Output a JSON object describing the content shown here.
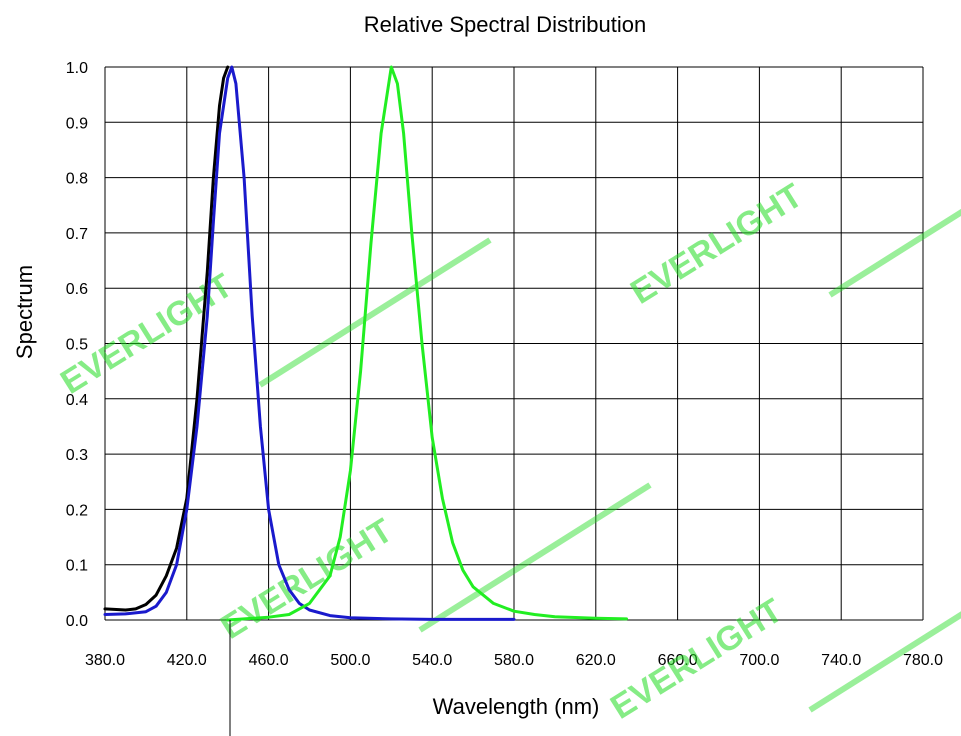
{
  "chart_data": {
    "type": "line",
    "title": "Relative Spectral Distribution",
    "xlabel": "Wavelength (nm)",
    "ylabel": "Spectrum",
    "xlim": [
      380,
      780
    ],
    "ylim": [
      0,
      1.0
    ],
    "x_ticks": [
      "380.0",
      "420.0",
      "460.0",
      "500.0",
      "540.0",
      "580.0",
      "620.0",
      "660.0",
      "700.0",
      "740.0",
      "780.0"
    ],
    "y_ticks": [
      "0.0",
      "0.1",
      "0.2",
      "0.3",
      "0.4",
      "0.5",
      "0.6",
      "0.7",
      "0.8",
      "0.9",
      "1.0"
    ],
    "grid": true,
    "series": [
      {
        "color": "#000000",
        "points": [
          [
            380,
            0.02
          ],
          [
            390,
            0.018
          ],
          [
            395,
            0.02
          ],
          [
            400,
            0.028
          ],
          [
            405,
            0.045
          ],
          [
            410,
            0.08
          ],
          [
            415,
            0.13
          ],
          [
            420,
            0.22
          ],
          [
            425,
            0.4
          ],
          [
            430,
            0.63
          ],
          [
            433,
            0.8
          ],
          [
            436,
            0.93
          ],
          [
            438,
            0.98
          ],
          [
            440,
            1.0
          ]
        ]
      },
      {
        "color": "#1a1acc",
        "points": [
          [
            380,
            0.01
          ],
          [
            390,
            0.011
          ],
          [
            400,
            0.015
          ],
          [
            405,
            0.025
          ],
          [
            410,
            0.05
          ],
          [
            415,
            0.1
          ],
          [
            420,
            0.2
          ],
          [
            425,
            0.35
          ],
          [
            430,
            0.55
          ],
          [
            433,
            0.72
          ],
          [
            436,
            0.88
          ],
          [
            440,
            0.98
          ],
          [
            442,
            1.0
          ],
          [
            444,
            0.97
          ],
          [
            448,
            0.8
          ],
          [
            452,
            0.55
          ],
          [
            456,
            0.35
          ],
          [
            460,
            0.2
          ],
          [
            465,
            0.1
          ],
          [
            470,
            0.055
          ],
          [
            475,
            0.03
          ],
          [
            480,
            0.018
          ],
          [
            490,
            0.008
          ],
          [
            500,
            0.004
          ],
          [
            520,
            0.002
          ],
          [
            540,
            0.001
          ],
          [
            580,
            0.001
          ]
        ]
      },
      {
        "color": "#22ee22",
        "points": [
          [
            440,
            0.0
          ],
          [
            460,
            0.005
          ],
          [
            470,
            0.01
          ],
          [
            480,
            0.03
          ],
          [
            490,
            0.08
          ],
          [
            495,
            0.15
          ],
          [
            500,
            0.27
          ],
          [
            505,
            0.45
          ],
          [
            510,
            0.68
          ],
          [
            515,
            0.88
          ],
          [
            520,
            1.0
          ],
          [
            523,
            0.97
          ],
          [
            526,
            0.88
          ],
          [
            530,
            0.7
          ],
          [
            535,
            0.5
          ],
          [
            540,
            0.33
          ],
          [
            545,
            0.22
          ],
          [
            550,
            0.14
          ],
          [
            555,
            0.09
          ],
          [
            560,
            0.06
          ],
          [
            570,
            0.03
          ],
          [
            580,
            0.016
          ],
          [
            590,
            0.01
          ],
          [
            600,
            0.006
          ],
          [
            620,
            0.003
          ],
          [
            635,
            0.002
          ]
        ]
      }
    ],
    "watermark": "EVERLIGHT"
  }
}
